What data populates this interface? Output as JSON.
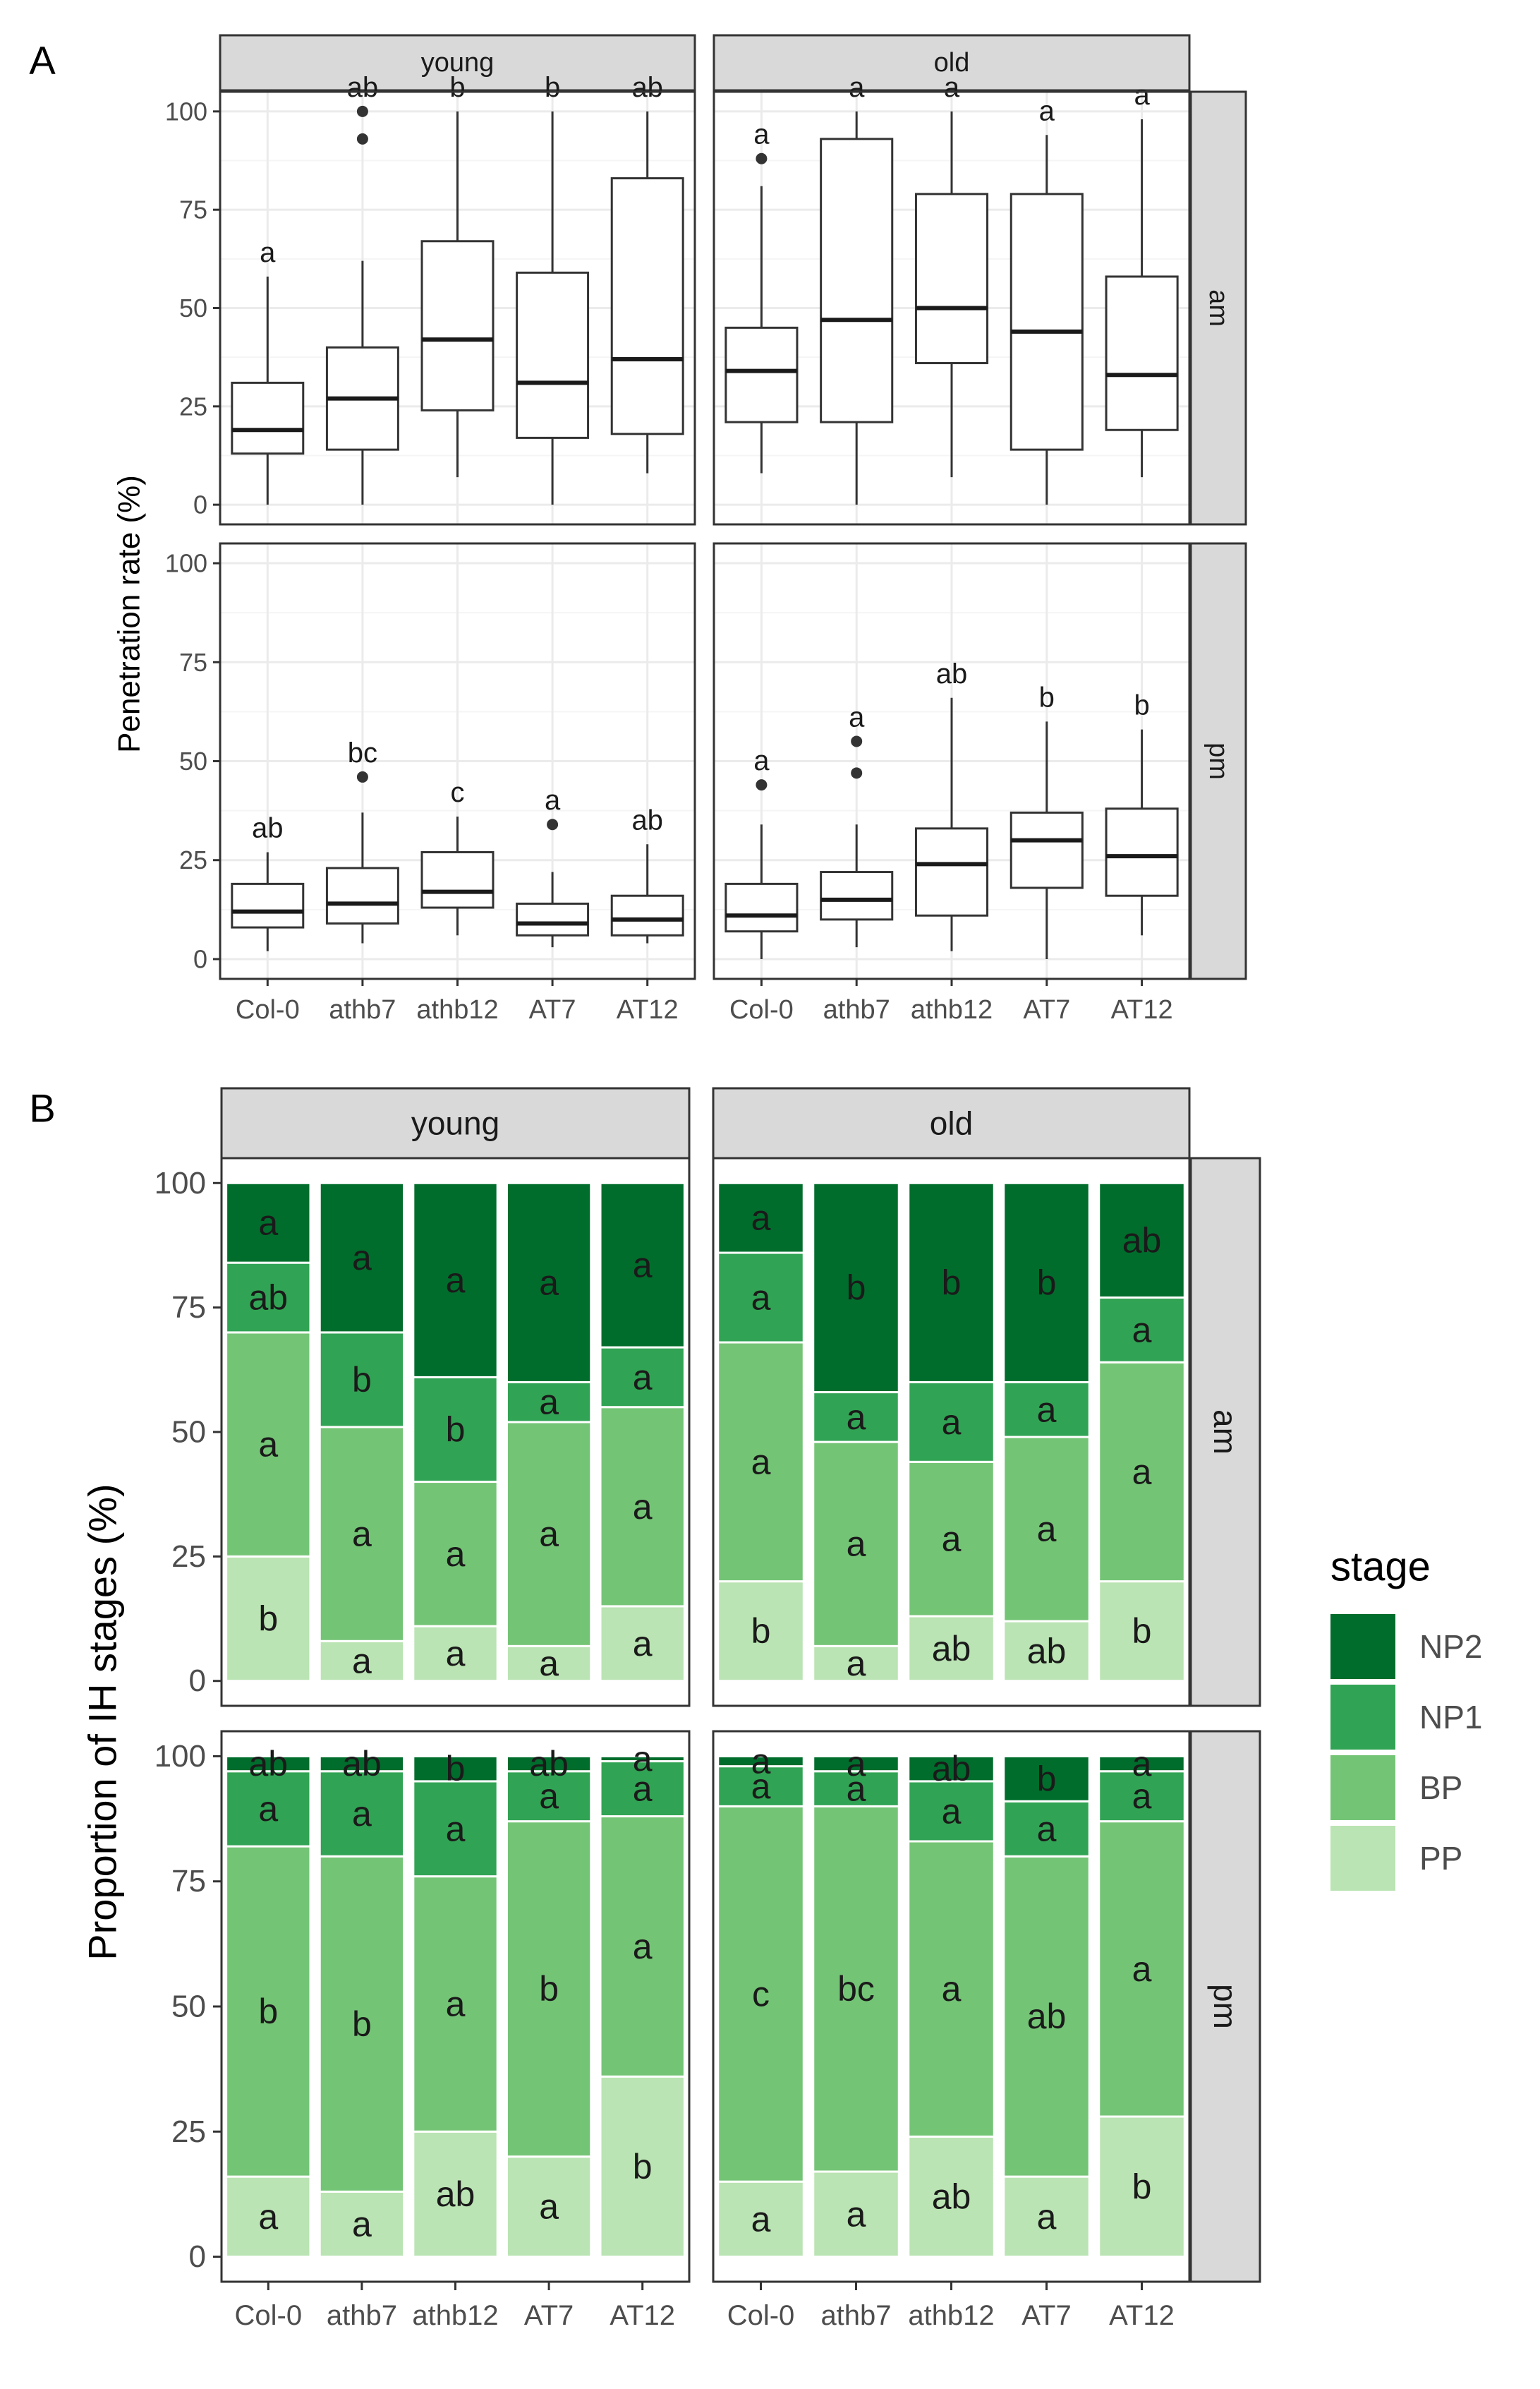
{
  "chart_data": [
    {
      "type": "boxplot",
      "panel_label": "A",
      "ylabel": "Penetration rate (%)",
      "xlabel": "",
      "ylim": [
        0,
        100
      ],
      "yticks": [
        0,
        25,
        50,
        75,
        100
      ],
      "columns": [
        "young",
        "old"
      ],
      "rows": [
        "am",
        "pm"
      ],
      "categories": [
        "Col-0",
        "athb7",
        "athb12",
        "AT7",
        "AT12"
      ],
      "facets": [
        {
          "column": "young",
          "row": "am",
          "boxes": [
            {
              "category": "Col-0",
              "min": 0,
              "q1": 13,
              "median": 19,
              "q3": 31,
              "max": 58,
              "outliers": [],
              "letter": "a"
            },
            {
              "category": "athb7",
              "min": 0,
              "q1": 14,
              "median": 27,
              "q3": 40,
              "max": 62,
              "outliers": [
                93,
                100
              ],
              "letter": "ab"
            },
            {
              "category": "athb12",
              "min": 7,
              "q1": 24,
              "median": 42,
              "q3": 67,
              "max": 100,
              "outliers": [],
              "letter": "b"
            },
            {
              "category": "AT7",
              "min": 0,
              "q1": 17,
              "median": 31,
              "q3": 59,
              "max": 100,
              "outliers": [],
              "letter": "b"
            },
            {
              "category": "AT12",
              "min": 8,
              "q1": 18,
              "median": 37,
              "q3": 83,
              "max": 100,
              "outliers": [],
              "letter": "ab"
            }
          ]
        },
        {
          "column": "old",
          "row": "am",
          "boxes": [
            {
              "category": "Col-0",
              "min": 8,
              "q1": 21,
              "median": 34,
              "q3": 45,
              "max": 81,
              "outliers": [
                88
              ],
              "letter": "a"
            },
            {
              "category": "athb7",
              "min": 0,
              "q1": 21,
              "median": 47,
              "q3": 93,
              "max": 100,
              "outliers": [],
              "letter": "a"
            },
            {
              "category": "athb12",
              "min": 7,
              "q1": 36,
              "median": 50,
              "q3": 79,
              "max": 100,
              "outliers": [],
              "letter": "a"
            },
            {
              "category": "AT7",
              "min": 0,
              "q1": 14,
              "median": 44,
              "q3": 79,
              "max": 94,
              "outliers": [],
              "letter": "a"
            },
            {
              "category": "AT12",
              "min": 7,
              "q1": 19,
              "median": 33,
              "q3": 58,
              "max": 98,
              "outliers": [],
              "letter": "a"
            }
          ]
        },
        {
          "column": "young",
          "row": "pm",
          "boxes": [
            {
              "category": "Col-0",
              "min": 2,
              "q1": 8,
              "median": 12,
              "q3": 19,
              "max": 27,
              "outliers": [],
              "letter": "ab"
            },
            {
              "category": "athb7",
              "min": 4,
              "q1": 9,
              "median": 14,
              "q3": 23,
              "max": 37,
              "outliers": [
                46
              ],
              "letter": "bc"
            },
            {
              "category": "athb12",
              "min": 6,
              "q1": 13,
              "median": 17,
              "q3": 27,
              "max": 36,
              "outliers": [],
              "letter": "c"
            },
            {
              "category": "AT7",
              "min": 3,
              "q1": 6,
              "median": 9,
              "q3": 14,
              "max": 22,
              "outliers": [
                34
              ],
              "letter": "a"
            },
            {
              "category": "AT12",
              "min": 4,
              "q1": 6,
              "median": 10,
              "q3": 16,
              "max": 29,
              "outliers": [],
              "letter": "ab"
            }
          ]
        },
        {
          "column": "old",
          "row": "pm",
          "boxes": [
            {
              "category": "Col-0",
              "min": 0,
              "q1": 7,
              "median": 11,
              "q3": 19,
              "max": 34,
              "outliers": [
                44
              ],
              "letter": "a"
            },
            {
              "category": "athb7",
              "min": 3,
              "q1": 10,
              "median": 15,
              "q3": 22,
              "max": 34,
              "outliers": [
                47,
                55
              ],
              "letter": "a"
            },
            {
              "category": "athb12",
              "min": 2,
              "q1": 11,
              "median": 24,
              "q3": 33,
              "max": 66,
              "outliers": [],
              "letter": "ab"
            },
            {
              "category": "AT7",
              "min": 0,
              "q1": 18,
              "median": 30,
              "q3": 37,
              "max": 60,
              "outliers": [],
              "letter": "b"
            },
            {
              "category": "AT12",
              "min": 6,
              "q1": 16,
              "median": 26,
              "q3": 38,
              "max": 58,
              "outliers": [],
              "letter": "b"
            }
          ]
        }
      ]
    },
    {
      "type": "stacked-bar",
      "panel_label": "B",
      "ylabel": "Proportion of IH stages (%)",
      "xlabel": "",
      "ylim": [
        0,
        100
      ],
      "yticks": [
        0,
        25,
        50,
        75,
        100
      ],
      "columns": [
        "young",
        "old"
      ],
      "rows": [
        "am",
        "pm"
      ],
      "categories": [
        "Col-0",
        "athb7",
        "athb12",
        "AT7",
        "AT12"
      ],
      "legend": {
        "title": "stage",
        "position": "right",
        "entries": [
          {
            "label": "NP2",
            "color": "#006d2c"
          },
          {
            "label": "NP1",
            "color": "#31a354"
          },
          {
            "label": "BP",
            "color": "#74c476"
          },
          {
            "label": "PP",
            "color": "#bae4b3"
          }
        ]
      },
      "stack_order_bottom_to_top": [
        "PP",
        "BP",
        "NP1",
        "NP2"
      ],
      "facets": [
        {
          "column": "young",
          "row": "am",
          "bars": [
            {
              "category": "Col-0",
              "PP": 25,
              "BP": 45,
              "NP1": 14,
              "NP2": 16,
              "letters": {
                "PP": "b",
                "BP": "a",
                "NP1": "ab",
                "NP2": "a"
              }
            },
            {
              "category": "athb7",
              "PP": 8,
              "BP": 43,
              "NP1": 19,
              "NP2": 30,
              "letters": {
                "PP": "a",
                "BP": "a",
                "NP1": "b",
                "NP2": "a"
              }
            },
            {
              "category": "athb12",
              "PP": 11,
              "BP": 29,
              "NP1": 21,
              "NP2": 39,
              "letters": {
                "PP": "a",
                "BP": "a",
                "NP1": "b",
                "NP2": "a"
              }
            },
            {
              "category": "AT7",
              "PP": 7,
              "BP": 45,
              "NP1": 8,
              "NP2": 40,
              "letters": {
                "PP": "a",
                "BP": "a",
                "NP1": "a",
                "NP2": "a"
              }
            },
            {
              "category": "AT12",
              "PP": 15,
              "BP": 40,
              "NP1": 12,
              "NP2": 33,
              "letters": {
                "PP": "a",
                "BP": "a",
                "NP1": "a",
                "NP2": "a"
              }
            }
          ]
        },
        {
          "column": "old",
          "row": "am",
          "bars": [
            {
              "category": "Col-0",
              "PP": 20,
              "BP": 48,
              "NP1": 18,
              "NP2": 14,
              "letters": {
                "PP": "b",
                "BP": "a",
                "NP1": "a",
                "NP2": "a"
              }
            },
            {
              "category": "athb7",
              "PP": 7,
              "BP": 41,
              "NP1": 10,
              "NP2": 42,
              "letters": {
                "PP": "a",
                "BP": "a",
                "NP1": "a",
                "NP2": "b"
              }
            },
            {
              "category": "athb12",
              "PP": 13,
              "BP": 31,
              "NP1": 16,
              "NP2": 40,
              "letters": {
                "PP": "ab",
                "BP": "a",
                "NP1": "a",
                "NP2": "b"
              }
            },
            {
              "category": "AT7",
              "PP": 12,
              "BP": 37,
              "NP1": 11,
              "NP2": 40,
              "letters": {
                "PP": "ab",
                "BP": "a",
                "NP1": "a",
                "NP2": "b"
              }
            },
            {
              "category": "AT12",
              "PP": 20,
              "BP": 44,
              "NP1": 13,
              "NP2": 23,
              "letters": {
                "PP": "b",
                "BP": "a",
                "NP1": "a",
                "NP2": "ab"
              }
            }
          ]
        },
        {
          "column": "young",
          "row": "pm",
          "bars": [
            {
              "category": "Col-0",
              "PP": 16,
              "BP": 66,
              "NP1": 15,
              "NP2": 3,
              "letters": {
                "PP": "a",
                "BP": "b",
                "NP1": "a",
                "NP2": "ab"
              }
            },
            {
              "category": "athb7",
              "PP": 13,
              "BP": 67,
              "NP1": 17,
              "NP2": 3,
              "letters": {
                "PP": "a",
                "BP": "b",
                "NP1": "a",
                "NP2": "ab"
              }
            },
            {
              "category": "athb12",
              "PP": 25,
              "BP": 51,
              "NP1": 19,
              "NP2": 5,
              "letters": {
                "PP": "ab",
                "BP": "a",
                "NP1": "a",
                "NP2": "b"
              }
            },
            {
              "category": "AT7",
              "PP": 20,
              "BP": 67,
              "NP1": 10,
              "NP2": 3,
              "letters": {
                "PP": "a",
                "BP": "b",
                "NP1": "a",
                "NP2": "ab"
              }
            },
            {
              "category": "AT12",
              "PP": 36,
              "BP": 52,
              "NP1": 11,
              "NP2": 1,
              "letters": {
                "PP": "b",
                "BP": "a",
                "NP1": "a",
                "NP2": "a"
              }
            }
          ]
        },
        {
          "column": "old",
          "row": "pm",
          "bars": [
            {
              "category": "Col-0",
              "PP": 15,
              "BP": 75,
              "NP1": 8,
              "NP2": 2,
              "letters": {
                "PP": "a",
                "BP": "c",
                "NP1": "a",
                "NP2": "a"
              }
            },
            {
              "category": "athb7",
              "PP": 17,
              "BP": 73,
              "NP1": 7,
              "NP2": 3,
              "letters": {
                "PP": "a",
                "BP": "bc",
                "NP1": "a",
                "NP2": "a"
              }
            },
            {
              "category": "athb12",
              "PP": 24,
              "BP": 59,
              "NP1": 12,
              "NP2": 5,
              "letters": {
                "PP": "ab",
                "BP": "a",
                "NP1": "a",
                "NP2": "ab"
              }
            },
            {
              "category": "AT7",
              "PP": 16,
              "BP": 64,
              "NP1": 11,
              "NP2": 9,
              "letters": {
                "PP": "a",
                "BP": "ab",
                "NP1": "a",
                "NP2": "b"
              }
            },
            {
              "category": "AT12",
              "PP": 28,
              "BP": 59,
              "NP1": 10,
              "NP2": 3,
              "letters": {
                "PP": "b",
                "BP": "a",
                "NP1": "a",
                "NP2": "a"
              }
            }
          ]
        }
      ]
    }
  ]
}
